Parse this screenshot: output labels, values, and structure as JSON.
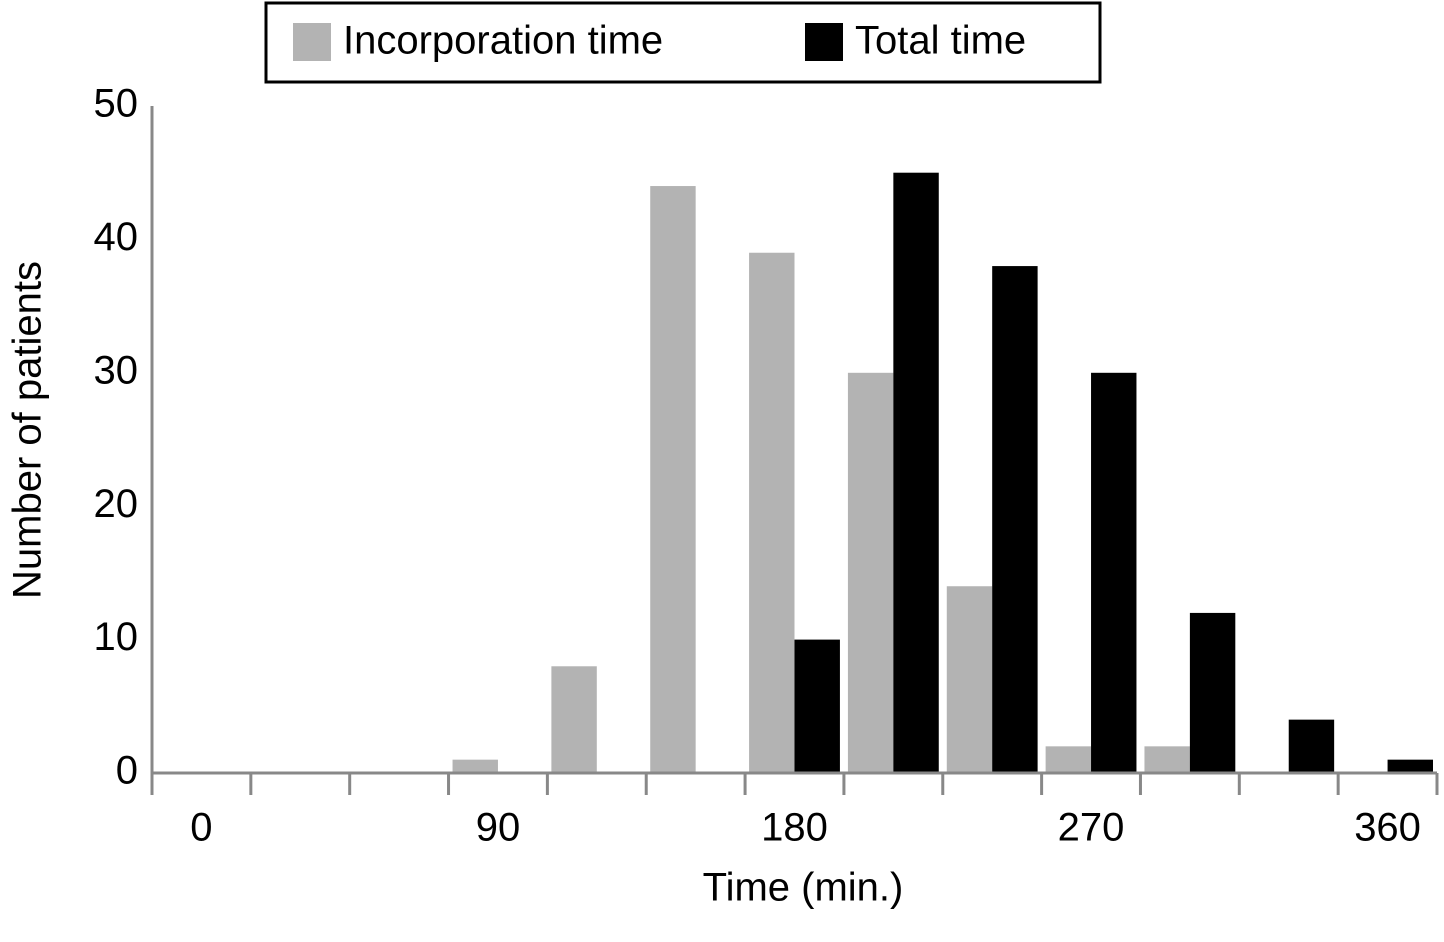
{
  "chart_data": {
    "type": "bar",
    "x_label": "Time (min.)",
    "y_label": "Number of patients",
    "categories": [
      "0",
      null,
      null,
      "90",
      null,
      null,
      "180",
      null,
      null,
      "270",
      null,
      null,
      "360"
    ],
    "series": [
      {
        "name": "Incorporation time",
        "color": "#b3b3b3",
        "values": [
          0,
          0,
          0,
          1,
          8,
          44,
          39,
          30,
          14,
          2,
          2,
          0,
          0
        ]
      },
      {
        "name": "Total time",
        "color": "#000000",
        "values": [
          0,
          0,
          0,
          0,
          0,
          0,
          10,
          45,
          38,
          30,
          12,
          4,
          1
        ]
      }
    ],
    "ylim": [
      0,
      50
    ],
    "yticks": [
      0,
      10,
      20,
      30,
      40,
      50
    ],
    "grid": false
  }
}
